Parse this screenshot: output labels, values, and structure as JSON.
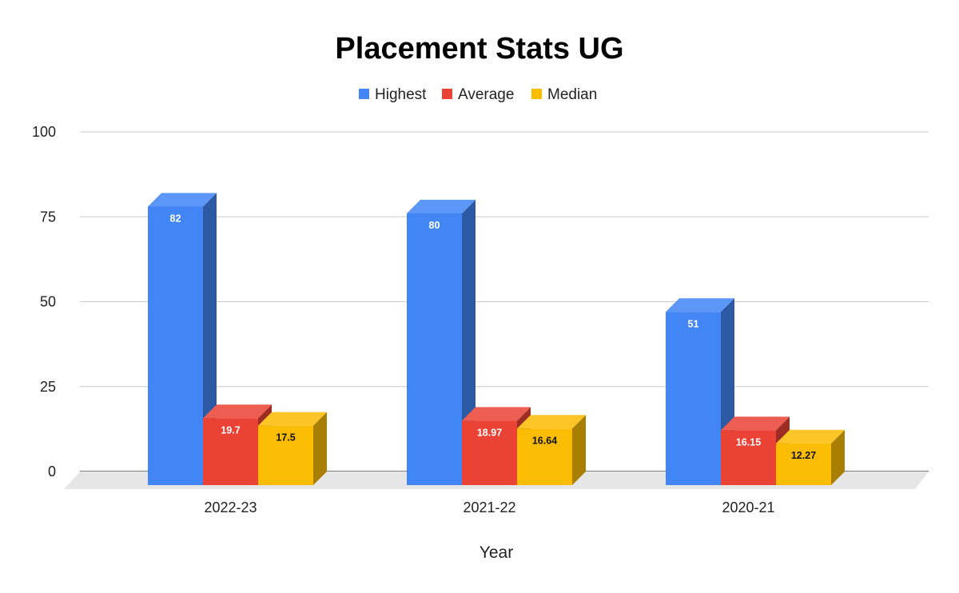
{
  "chart_data": {
    "type": "bar",
    "title": "Placement Stats UG",
    "xlabel": "Year",
    "ylabel": "",
    "categories": [
      "2022-23",
      "2021-22",
      "2020-21"
    ],
    "series": [
      {
        "name": "Highest",
        "values": [
          82,
          80,
          51
        ],
        "labels": [
          "82",
          "80",
          "51"
        ],
        "color": "#4285f4"
      },
      {
        "name": "Average",
        "values": [
          19.7,
          18.97,
          16.15
        ],
        "labels": [
          "19.7",
          "18.97",
          "16.15"
        ],
        "color": "#ea4335"
      },
      {
        "name": "Median",
        "values": [
          17.5,
          16.64,
          12.27
        ],
        "labels": [
          "17.5",
          "16.64",
          "12.27"
        ],
        "color": "#fbbc04"
      }
    ],
    "ylim": [
      0,
      100
    ],
    "yticks": [
      "0",
      "25",
      "50",
      "75",
      "100"
    ],
    "grid": true,
    "legend": "top",
    "style": "3d"
  }
}
